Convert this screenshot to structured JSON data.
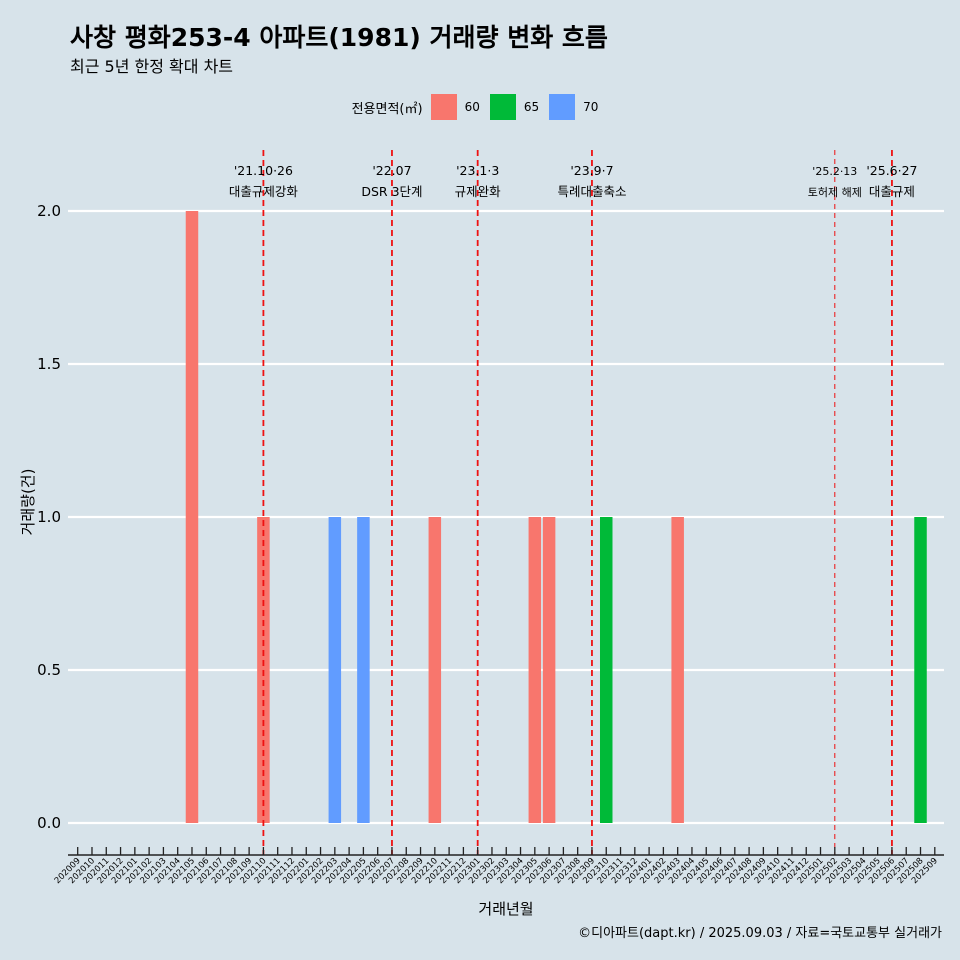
{
  "header": {
    "title": "사창 평화253-4 아파트(1981) 거래량 변화 흐름",
    "subtitle": "최근 5년 한정 확대 차트"
  },
  "legend": {
    "title": "전용면적(㎡)",
    "items": [
      {
        "label": "60",
        "color": "#F8766D"
      },
      {
        "label": "65",
        "color": "#00BA38"
      },
      {
        "label": "70",
        "color": "#619CFF"
      }
    ]
  },
  "caption": "©디아파트(dapt.kr) / 2025.09.03 / 자료=국토교통부 실거래가",
  "chart_data": {
    "type": "bar",
    "title": "사창 평화253-4 아파트(1981) 거래량 변화 흐름",
    "xlabel": "거래년월",
    "ylabel": "거래량(건)",
    "ylim": [
      0,
      2
    ],
    "yticks": [
      "0.0",
      "0.5",
      "1.0",
      "1.5",
      "2.0"
    ],
    "ytick_values": [
      0,
      0.5,
      1.0,
      1.5,
      2.0
    ],
    "categories": [
      "202009",
      "202010",
      "202011",
      "202012",
      "202101",
      "202102",
      "202103",
      "202104",
      "202105",
      "202106",
      "202107",
      "202108",
      "202109",
      "202110",
      "202111",
      "202112",
      "202201",
      "202202",
      "202203",
      "202204",
      "202205",
      "202206",
      "202207",
      "202208",
      "202209",
      "202210",
      "202211",
      "202212",
      "202301",
      "202302",
      "202303",
      "202304",
      "202305",
      "202306",
      "202307",
      "202308",
      "202309",
      "202310",
      "202311",
      "202312",
      "202401",
      "202402",
      "202403",
      "202404",
      "202405",
      "202406",
      "202407",
      "202408",
      "202409",
      "202410",
      "202411",
      "202412",
      "202501",
      "202502",
      "202503",
      "202504",
      "202505",
      "202506",
      "202507",
      "202508",
      "202509"
    ],
    "series": [
      {
        "name": "60",
        "color": "#F8766D",
        "points": [
          {
            "x": "202105",
            "y": 2
          },
          {
            "x": "202110",
            "y": 1
          },
          {
            "x": "202210",
            "y": 1
          },
          {
            "x": "202305",
            "y": 1
          },
          {
            "x": "202306",
            "y": 1
          },
          {
            "x": "202403",
            "y": 1
          }
        ]
      },
      {
        "name": "65",
        "color": "#00BA38",
        "points": [
          {
            "x": "202310",
            "y": 1
          },
          {
            "x": "202508",
            "y": 1
          }
        ]
      },
      {
        "name": "70",
        "color": "#619CFF",
        "points": [
          {
            "x": "202203",
            "y": 1
          },
          {
            "x": "202205",
            "y": 1
          }
        ]
      }
    ],
    "events": [
      {
        "x": "202110",
        "date": "'21.10·26",
        "label": "대출규제강화",
        "style": "bold"
      },
      {
        "x": "202207",
        "date": "'22.07",
        "label": "DSR 3단계",
        "style": "bold"
      },
      {
        "x": "202301",
        "date": "'23.1·3",
        "label": "규제완화",
        "style": "bold"
      },
      {
        "x": "202309",
        "date": "'23.9·7",
        "label": "특례대출축소",
        "style": "bold"
      },
      {
        "x": "202502",
        "date": "'25.2·13",
        "label": "토허제 해제",
        "style": "thin"
      },
      {
        "x": "202506",
        "date": "'25.6·27",
        "label": "대출규제",
        "style": "bold"
      }
    ]
  }
}
